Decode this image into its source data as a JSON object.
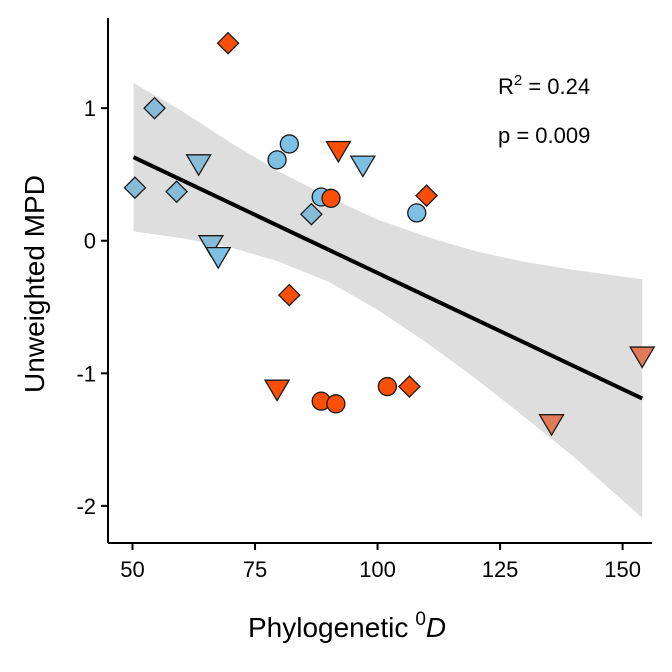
{
  "chart_data": {
    "type": "scatter",
    "xlabel": "Phylogenetic",
    "xlabel_super": "0",
    "xlabel_italic": "D",
    "ylabel": "Unweighted MPD",
    "xlim": [
      45,
      156
    ],
    "ylim": [
      -2.28,
      1.68
    ],
    "x_ticks": [
      50,
      75,
      100,
      125,
      150
    ],
    "y_ticks": [
      1,
      0,
      -1,
      -2
    ],
    "grid": false,
    "annotation": {
      "r2_base": "R",
      "r2_sup": "2",
      "r2_value": " = 0.24",
      "p": "p = 0.009"
    },
    "regression": {
      "x": [
        50.2,
        154
      ],
      "y": [
        0.63,
        -1.19
      ],
      "ci_band": [
        {
          "x": 50.2,
          "lo": 0.07,
          "hi": 1.19
        },
        {
          "x": 60,
          "lo": 0.02,
          "hi": 0.98
        },
        {
          "x": 70,
          "lo": -0.05,
          "hi": 0.74
        },
        {
          "x": 80,
          "lo": -0.16,
          "hi": 0.52
        },
        {
          "x": 90,
          "lo": -0.31,
          "hi": 0.33
        },
        {
          "x": 100,
          "lo": -0.52,
          "hi": 0.16
        },
        {
          "x": 110,
          "lo": -0.77,
          "hi": 0.03
        },
        {
          "x": 120,
          "lo": -1.04,
          "hi": -0.08
        },
        {
          "x": 130,
          "lo": -1.33,
          "hi": -0.16
        },
        {
          "x": 140,
          "lo": -1.63,
          "hi": -0.22
        },
        {
          "x": 154,
          "lo": -2.09,
          "hi": -0.29
        }
      ]
    },
    "colors": {
      "orange": "#fc4e07",
      "blue": "#7ec0e4",
      "blue_faded": "#86bcd8",
      "orange_faded": "#e07a58",
      "band": "#dedede",
      "line": "#000000"
    },
    "points": [
      {
        "x": 69.5,
        "y": 1.49,
        "shape": "diamond",
        "color": "orange"
      },
      {
        "x": 54.5,
        "y": 1.0,
        "shape": "diamond",
        "color": "blue_faded"
      },
      {
        "x": 50.5,
        "y": 0.4,
        "shape": "diamond",
        "color": "blue_faded"
      },
      {
        "x": 59.0,
        "y": 0.37,
        "shape": "diamond",
        "color": "blue_faded"
      },
      {
        "x": 63.5,
        "y": 0.58,
        "shape": "triangle",
        "color": "blue_faded"
      },
      {
        "x": 66.0,
        "y": -0.03,
        "shape": "triangle",
        "color": "blue_faded"
      },
      {
        "x": 67.5,
        "y": -0.12,
        "shape": "triangle",
        "color": "blue"
      },
      {
        "x": 79.5,
        "y": 0.61,
        "shape": "circle",
        "color": "blue"
      },
      {
        "x": 82.0,
        "y": 0.73,
        "shape": "circle",
        "color": "blue"
      },
      {
        "x": 86.5,
        "y": 0.2,
        "shape": "diamond",
        "color": "blue_faded"
      },
      {
        "x": 88.5,
        "y": 0.33,
        "shape": "circle",
        "color": "blue"
      },
      {
        "x": 90.5,
        "y": 0.32,
        "shape": "circle",
        "color": "orange"
      },
      {
        "x": 92.0,
        "y": 0.68,
        "shape": "triangle",
        "color": "orange"
      },
      {
        "x": 97.0,
        "y": 0.57,
        "shape": "triangle",
        "color": "blue"
      },
      {
        "x": 108.0,
        "y": 0.21,
        "shape": "circle",
        "color": "blue"
      },
      {
        "x": 110.0,
        "y": 0.34,
        "shape": "diamond",
        "color": "orange"
      },
      {
        "x": 82.0,
        "y": -0.41,
        "shape": "diamond",
        "color": "orange"
      },
      {
        "x": 79.5,
        "y": -1.12,
        "shape": "triangle",
        "color": "orange"
      },
      {
        "x": 88.5,
        "y": -1.21,
        "shape": "circle",
        "color": "orange"
      },
      {
        "x": 91.5,
        "y": -1.23,
        "shape": "circle",
        "color": "orange"
      },
      {
        "x": 102.0,
        "y": -1.1,
        "shape": "circle",
        "color": "orange"
      },
      {
        "x": 106.5,
        "y": -1.1,
        "shape": "diamond",
        "color": "orange"
      },
      {
        "x": 135.5,
        "y": -1.38,
        "shape": "triangle",
        "color": "orange_faded"
      },
      {
        "x": 154.0,
        "y": -0.87,
        "shape": "triangle",
        "color": "orange_faded"
      }
    ]
  }
}
